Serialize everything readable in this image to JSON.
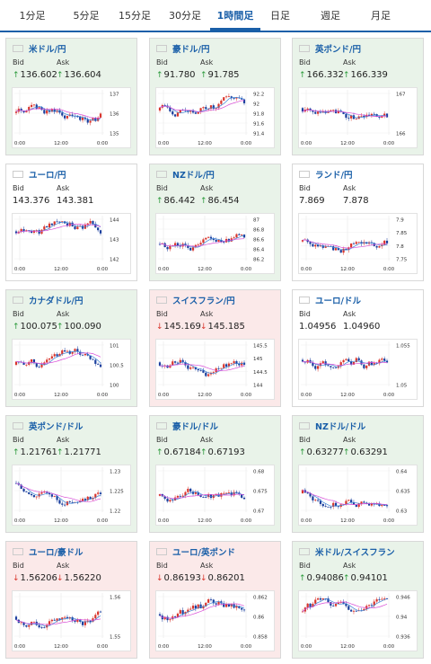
{
  "tabs": [
    {
      "label": "1分足"
    },
    {
      "label": "5分足"
    },
    {
      "label": "15分足"
    },
    {
      "label": "30分足"
    },
    {
      "label": "1時間足",
      "active": true
    },
    {
      "label": "日足"
    },
    {
      "label": "週足"
    },
    {
      "label": "月足"
    }
  ],
  "labels": {
    "bid": "Bid",
    "ask": "Ask"
  },
  "x_ticks": [
    "0:00",
    "12:00",
    "0:00"
  ],
  "colors": {
    "up_candle": "#d9352c",
    "down_candle": "#1a3f9e",
    "ma_fast": "#3b83d6",
    "ma_slow": "#d84bd6",
    "up_arrow": "#2a9a3a",
    "down_arrow": "#d9352c",
    "card_up": "#e9f3e9",
    "card_down": "#fbe9e9"
  },
  "cards": [
    {
      "name": "米ドル/円",
      "flag": "us-flag",
      "dir": "up",
      "bid": "136.602",
      "ask": "136.604",
      "y_ticks": [
        "137",
        "136",
        "135"
      ],
      "seed": 1
    },
    {
      "name": "豪ドル/円",
      "flag": "au-flag",
      "dir": "up",
      "bid": "91.780",
      "ask": "91.785",
      "y_ticks": [
        "92.2",
        "92",
        "91.8",
        "91.6",
        "91.4"
      ],
      "seed": 2
    },
    {
      "name": "英ポンド/円",
      "flag": "gb-flag",
      "dir": "up",
      "bid": "166.332",
      "ask": "166.339",
      "y_ticks": [
        "167",
        "166"
      ],
      "seed": 3
    },
    {
      "name": "ユーロ/円",
      "flag": "eu-flag",
      "dir": "flat",
      "bid": "143.376",
      "ask": "143.381",
      "y_ticks": [
        "144",
        "143",
        "142"
      ],
      "seed": 4
    },
    {
      "name": "NZドル/円",
      "flag": "nz-flag",
      "dir": "up",
      "bid": "86.442",
      "ask": "86.454",
      "y_ticks": [
        "87",
        "86.8",
        "86.6",
        "86.4",
        "86.2"
      ],
      "seed": 5
    },
    {
      "name": "ランド/円",
      "flag": "za-flag",
      "dir": "flat",
      "bid": "7.869",
      "ask": "7.878",
      "y_ticks": [
        "7.9",
        "7.85",
        "7.8",
        "7.75"
      ],
      "seed": 6
    },
    {
      "name": "カナダドル/円",
      "flag": "ca-flag",
      "dir": "up",
      "bid": "100.075",
      "ask": "100.090",
      "y_ticks": [
        "101",
        "100.5",
        "100"
      ],
      "seed": 7
    },
    {
      "name": "スイスフラン/円",
      "flag": "ch-flag",
      "dir": "down",
      "bid": "145.169",
      "ask": "145.185",
      "y_ticks": [
        "145.5",
        "145",
        "144.5",
        "144"
      ],
      "seed": 8
    },
    {
      "name": "ユーロ/ドル",
      "flag": "eu-flag",
      "dir": "flat",
      "bid": "1.04956",
      "ask": "1.04960",
      "y_ticks": [
        "1.055",
        "1.05"
      ],
      "seed": 9
    },
    {
      "name": "英ポンド/ドル",
      "flag": "gb-flag",
      "dir": "up",
      "bid": "1.21761",
      "ask": "1.21771",
      "y_ticks": [
        "1.23",
        "1.225",
        "1.22"
      ],
      "seed": 10
    },
    {
      "name": "豪ドル/ドル",
      "flag": "au-flag",
      "dir": "up",
      "bid": "0.67184",
      "ask": "0.67193",
      "y_ticks": [
        "0.68",
        "0.675",
        "0.67"
      ],
      "seed": 11
    },
    {
      "name": "NZドル/ドル",
      "flag": "nz-flag",
      "dir": "up",
      "bid": "0.63277",
      "ask": "0.63291",
      "y_ticks": [
        "0.64",
        "0.635",
        "0.63"
      ],
      "seed": 12
    },
    {
      "name": "ユーロ/豪ドル",
      "flag": "eu-flag",
      "dir": "down",
      "bid": "1.56206",
      "ask": "1.56220",
      "y_ticks": [
        "1.56",
        "1.55"
      ],
      "seed": 13
    },
    {
      "name": "ユーロ/英ポンド",
      "flag": "eu-flag",
      "dir": "down",
      "bid": "0.86193",
      "ask": "0.86201",
      "y_ticks": [
        "0.862",
        "0.86",
        "0.858"
      ],
      "seed": 14
    },
    {
      "name": "米ドル/スイスフラン",
      "flag": "us-flag",
      "dir": "up",
      "bid": "0.94086",
      "ask": "0.94101",
      "y_ticks": [
        "0.946",
        "0.94",
        "0.936"
      ],
      "seed": 15
    }
  ]
}
